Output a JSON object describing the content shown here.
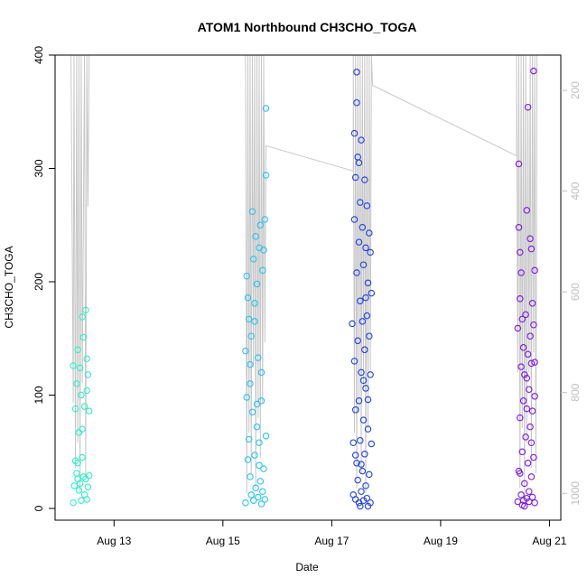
{
  "chart_data": {
    "type": "scatter",
    "title": "ATOM1 Northbound CH3CHO_TOGA",
    "xlabel": "Date",
    "ylabel": "CH3CHO_TOGA",
    "ylim": [
      0,
      400
    ],
    "y_ticks": [
      0,
      100,
      200,
      300,
      400
    ],
    "x_ticks": [
      "Aug 13",
      "Aug 15",
      "Aug 17",
      "Aug 19",
      "Aug 21"
    ],
    "x_range_days": [
      "2016-08-11T22:00",
      "2016-08-21T05:00"
    ],
    "y2_ticks": [
      200,
      400,
      600,
      800,
      1000
    ],
    "y2_range_inverted": [
      130,
      1030
    ],
    "colors": {
      "seg1": "#2cf0c8",
      "seg2": "#25c4f0",
      "seg3": "#1f3fe6",
      "seg4": "#7a18e8",
      "altitude": "#c8c8c8"
    },
    "series": [
      {
        "points": [
          [
            "2016-08-12T06:00",
            5
          ],
          [
            "2016-08-12T06:30",
            20
          ],
          [
            "2016-08-12T07:00",
            42
          ],
          [
            "2016-08-12T07:00",
            88
          ],
          [
            "2016-08-12T07:30",
            31
          ],
          [
            "2016-08-12T07:30",
            110
          ],
          [
            "2016-08-12T08:00",
            26
          ],
          [
            "2016-08-12T08:00",
            140
          ],
          [
            "2016-08-12T08:30",
            16
          ],
          [
            "2016-08-12T08:30",
            67
          ],
          [
            "2016-08-12T09:00",
            22
          ],
          [
            "2016-08-12T09:00",
            124
          ],
          [
            "2016-08-12T09:30",
            7
          ],
          [
            "2016-08-12T09:30",
            100
          ],
          [
            "2016-08-12T10:00",
            45
          ],
          [
            "2016-08-12T10:00",
            169
          ],
          [
            "2016-08-12T10:30",
            28
          ],
          [
            "2016-08-12T10:30",
            151
          ],
          [
            "2016-08-12T11:00",
            12
          ],
          [
            "2016-08-12T11:00",
            90
          ],
          [
            "2016-08-12T11:30",
            175
          ],
          [
            "2016-08-12T11:30",
            26
          ],
          [
            "2016-08-12T12:00",
            104
          ],
          [
            "2016-08-12T12:00",
            132
          ],
          [
            "2016-08-12T12:30",
            19
          ],
          [
            "2016-08-12T12:30",
            118
          ],
          [
            "2016-08-12T13:00",
            29
          ],
          [
            "2016-08-12T13:00",
            86
          ],
          [
            "2016-08-12T08:00",
            40
          ],
          [
            "2016-08-12T10:00",
            70
          ],
          [
            "2016-08-12T06:00",
            126
          ],
          [
            "2016-08-12T12:00",
            8
          ]
        ]
      },
      {
        "points": [
          [
            "2016-08-15T10:00",
            5
          ],
          [
            "2016-08-15T10:00",
            139
          ],
          [
            "2016-08-15T10:30",
            98
          ],
          [
            "2016-08-15T10:30",
            205
          ],
          [
            "2016-08-15T11:00",
            43
          ],
          [
            "2016-08-15T11:00",
            186
          ],
          [
            "2016-08-15T11:30",
            61
          ],
          [
            "2016-08-15T11:30",
            167
          ],
          [
            "2016-08-15T12:00",
            28
          ],
          [
            "2016-08-15T12:00",
            127
          ],
          [
            "2016-08-15T12:30",
            12
          ],
          [
            "2016-08-15T12:30",
            152
          ],
          [
            "2016-08-15T13:00",
            85
          ],
          [
            "2016-08-15T13:00",
            262
          ],
          [
            "2016-08-15T13:30",
            7
          ],
          [
            "2016-08-15T13:30",
            220
          ],
          [
            "2016-08-15T14:00",
            47
          ],
          [
            "2016-08-15T14:00",
            165
          ],
          [
            "2016-08-15T14:30",
            18
          ],
          [
            "2016-08-15T14:30",
            240
          ],
          [
            "2016-08-15T15:00",
            72
          ],
          [
            "2016-08-15T15:00",
            198
          ],
          [
            "2016-08-15T15:30",
            10
          ],
          [
            "2016-08-15T15:30",
            133
          ],
          [
            "2016-08-15T16:00",
            58
          ],
          [
            "2016-08-15T16:00",
            230
          ],
          [
            "2016-08-15T16:30",
            24
          ],
          [
            "2016-08-15T16:30",
            250
          ],
          [
            "2016-08-15T17:00",
            95
          ],
          [
            "2016-08-15T17:00",
            120
          ],
          [
            "2016-08-15T17:30",
            15
          ],
          [
            "2016-08-15T17:30",
            210
          ],
          [
            "2016-08-15T18:00",
            35
          ],
          [
            "2016-08-15T18:00",
            228
          ],
          [
            "2016-08-15T18:30",
            8
          ],
          [
            "2016-08-15T18:30",
            255
          ],
          [
            "2016-08-15T19:00",
            64
          ],
          [
            "2016-08-15T19:00",
            294
          ],
          [
            "2016-08-15T19:00",
            353
          ],
          [
            "2016-08-15T17:00",
            4
          ],
          [
            "2016-08-15T12:00",
            110
          ],
          [
            "2016-08-15T15:00",
            92
          ],
          [
            "2016-08-15T16:00",
            38
          ],
          [
            "2016-08-15T14:00",
            181
          ]
        ]
      },
      {
        "points": [
          [
            "2016-08-17T09:00",
            163
          ],
          [
            "2016-08-17T09:30",
            12
          ],
          [
            "2016-08-17T09:30",
            58
          ],
          [
            "2016-08-17T10:00",
            130
          ],
          [
            "2016-08-17T10:00",
            255
          ],
          [
            "2016-08-17T10:00",
            331
          ],
          [
            "2016-08-17T10:30",
            8
          ],
          [
            "2016-08-17T10:30",
            87
          ],
          [
            "2016-08-17T10:30",
            292
          ],
          [
            "2016-08-17T11:00",
            385
          ],
          [
            "2016-08-17T11:00",
            40
          ],
          [
            "2016-08-17T11:00",
            208
          ],
          [
            "2016-08-17T11:30",
            25
          ],
          [
            "2016-08-17T11:30",
            148
          ],
          [
            "2016-08-17T11:30",
            310
          ],
          [
            "2016-08-17T12:00",
            5
          ],
          [
            "2016-08-17T12:00",
            95
          ],
          [
            "2016-08-17T12:00",
            235
          ],
          [
            "2016-08-17T12:30",
            60
          ],
          [
            "2016-08-17T12:30",
            183
          ],
          [
            "2016-08-17T12:30",
            270
          ],
          [
            "2016-08-17T13:00",
            15
          ],
          [
            "2016-08-17T13:00",
            120
          ],
          [
            "2016-08-17T13:00",
            325
          ],
          [
            "2016-08-17T13:30",
            33
          ],
          [
            "2016-08-17T13:30",
            165
          ],
          [
            "2016-08-17T13:30",
            248
          ],
          [
            "2016-08-17T14:00",
            7
          ],
          [
            "2016-08-17T14:00",
            78
          ],
          [
            "2016-08-17T14:00",
            215
          ],
          [
            "2016-08-17T14:30",
            48
          ],
          [
            "2016-08-17T14:30",
            140
          ],
          [
            "2016-08-17T14:30",
            290
          ],
          [
            "2016-08-17T15:00",
            20
          ],
          [
            "2016-08-17T15:00",
            106
          ],
          [
            "2016-08-17T15:00",
            230
          ],
          [
            "2016-08-17T15:30",
            9
          ],
          [
            "2016-08-17T15:30",
            170
          ],
          [
            "2016-08-17T15:30",
            267
          ],
          [
            "2016-08-17T16:00",
            70
          ],
          [
            "2016-08-17T16:00",
            199
          ],
          [
            "2016-08-17T16:30",
            30
          ],
          [
            "2016-08-17T16:30",
            152
          ],
          [
            "2016-08-17T16:30",
            243
          ],
          [
            "2016-08-17T17:00",
            5
          ],
          [
            "2016-08-17T17:00",
            118
          ],
          [
            "2016-08-17T17:00",
            226
          ],
          [
            "2016-08-17T17:30",
            57
          ],
          [
            "2016-08-17T17:30",
            190
          ],
          [
            "2016-08-17T11:00",
            358
          ],
          [
            "2016-08-17T12:00",
            305
          ],
          [
            "2016-08-17T14:00",
            113
          ],
          [
            "2016-08-17T15:00",
            186
          ],
          [
            "2016-08-17T16:00",
            96
          ],
          [
            "2016-08-17T13:00",
            39
          ],
          [
            "2016-08-17T10:30",
            47
          ],
          [
            "2016-08-17T12:30",
            2
          ],
          [
            "2016-08-17T16:00",
            2
          ]
        ]
      },
      {
        "points": [
          [
            "2016-08-20T10:00",
            6
          ],
          [
            "2016-08-20T10:00",
            159
          ],
          [
            "2016-08-20T10:30",
            33
          ],
          [
            "2016-08-20T10:30",
            248
          ],
          [
            "2016-08-20T10:30",
            304
          ],
          [
            "2016-08-20T11:00",
            80
          ],
          [
            "2016-08-20T11:00",
            185
          ],
          [
            "2016-08-20T11:00",
            226
          ],
          [
            "2016-08-20T11:30",
            12
          ],
          [
            "2016-08-20T11:30",
            125
          ],
          [
            "2016-08-20T11:30",
            208
          ],
          [
            "2016-08-20T12:00",
            50
          ],
          [
            "2016-08-20T12:00",
            167
          ],
          [
            "2016-08-20T12:30",
            7
          ],
          [
            "2016-08-20T12:30",
            95
          ],
          [
            "2016-08-20T12:30",
            142
          ],
          [
            "2016-08-20T13:00",
            22
          ],
          [
            "2016-08-20T13:00",
            118
          ],
          [
            "2016-08-20T13:30",
            63
          ],
          [
            "2016-08-20T13:30",
            171
          ],
          [
            "2016-08-20T14:00",
            9
          ],
          [
            "2016-08-20T14:00",
            88
          ],
          [
            "2016-08-20T14:00",
            263
          ],
          [
            "2016-08-20T14:30",
            40
          ],
          [
            "2016-08-20T14:30",
            136
          ],
          [
            "2016-08-20T14:30",
            354
          ],
          [
            "2016-08-20T15:00",
            15
          ],
          [
            "2016-08-20T15:00",
            105
          ],
          [
            "2016-08-20T15:30",
            72
          ],
          [
            "2016-08-20T15:30",
            152
          ],
          [
            "2016-08-20T16:00",
            28
          ],
          [
            "2016-08-20T16:00",
            128
          ],
          [
            "2016-08-20T16:00",
            229
          ],
          [
            "2016-08-20T16:30",
            10
          ],
          [
            "2016-08-20T16:30",
            86
          ],
          [
            "2016-08-20T16:30",
            181
          ],
          [
            "2016-08-20T17:00",
            45
          ],
          [
            "2016-08-20T17:00",
            162
          ],
          [
            "2016-08-20T17:00",
            386
          ],
          [
            "2016-08-20T17:30",
            5
          ],
          [
            "2016-08-20T17:30",
            99
          ],
          [
            "2016-08-20T17:30",
            210
          ],
          [
            "2016-08-20T12:00",
            3
          ],
          [
            "2016-08-20T13:00",
            2
          ],
          [
            "2016-08-20T15:00",
            6
          ],
          [
            "2016-08-20T16:00",
            58
          ],
          [
            "2016-08-20T11:00",
            31
          ],
          [
            "2016-08-20T14:00",
            115
          ],
          [
            "2016-08-20T15:30",
            238
          ],
          [
            "2016-08-20T17:30",
            129
          ]
        ]
      }
    ],
    "altitude_trace": {
      "segments": [
        [
          [
            "2016-08-12T05:00",
            130
          ],
          [
            "2016-08-12T06:00",
            820
          ],
          [
            "2016-08-12T06:20",
            130
          ],
          [
            "2016-08-12T07:00",
            950
          ],
          [
            "2016-08-12T07:30",
            130
          ],
          [
            "2016-08-12T08:00",
            900
          ],
          [
            "2016-08-12T08:30",
            130
          ],
          [
            "2016-08-12T09:00",
            1000
          ],
          [
            "2016-08-12T09:30",
            130
          ],
          [
            "2016-08-12T10:00",
            780
          ],
          [
            "2016-08-12T11:00",
            130
          ],
          [
            "2016-08-12T11:30",
            970
          ],
          [
            "2016-08-12T12:00",
            130
          ],
          [
            "2016-08-12T12:30",
            430
          ],
          [
            "2016-08-12T13:00",
            130
          ]
        ],
        [
          [
            "2016-08-15T10:00",
            130
          ],
          [
            "2016-08-15T10:30",
            1000
          ],
          [
            "2016-08-15T11:00",
            130
          ],
          [
            "2016-08-15T11:30",
            880
          ],
          [
            "2016-08-15T12:00",
            130
          ],
          [
            "2016-08-15T12:30",
            960
          ],
          [
            "2016-08-15T13:00",
            130
          ],
          [
            "2016-08-15T13:30",
            750
          ],
          [
            "2016-08-15T14:00",
            130
          ],
          [
            "2016-08-15T14:30",
            990
          ],
          [
            "2016-08-15T15:00",
            130
          ],
          [
            "2016-08-15T15:30",
            850
          ],
          [
            "2016-08-15T16:00",
            130
          ],
          [
            "2016-08-15T16:30",
            930
          ],
          [
            "2016-08-15T17:00",
            130
          ],
          [
            "2016-08-15T17:30",
            820
          ],
          [
            "2016-08-15T18:00",
            130
          ],
          [
            "2016-08-15T18:30",
            700
          ],
          [
            "2016-08-15T19:00",
            310
          ],
          [
            "2016-08-17T09:30",
            360
          ],
          [
            "2016-08-17T09:30",
            130
          ],
          [
            "2016-08-17T10:00",
            880
          ],
          [
            "2016-08-17T10:30",
            130
          ],
          [
            "2016-08-17T11:00",
            990
          ],
          [
            "2016-08-17T11:30",
            130
          ],
          [
            "2016-08-17T12:00",
            840
          ],
          [
            "2016-08-17T12:30",
            130
          ],
          [
            "2016-08-17T13:00",
            960
          ],
          [
            "2016-08-17T13:30",
            130
          ],
          [
            "2016-08-17T14:00",
            790
          ],
          [
            "2016-08-17T14:30",
            130
          ],
          [
            "2016-08-17T15:00",
            1000
          ],
          [
            "2016-08-17T15:30",
            130
          ],
          [
            "2016-08-17T16:00",
            870
          ],
          [
            "2016-08-17T16:30",
            130
          ],
          [
            "2016-08-17T17:00",
            760
          ],
          [
            "2016-08-17T17:30",
            130
          ],
          [
            "2016-08-17T18:00",
            190
          ],
          [
            "2016-08-20T09:30",
            330
          ],
          [
            "2016-08-20T09:30",
            130
          ],
          [
            "2016-08-20T10:00",
            760
          ],
          [
            "2016-08-20T10:30",
            130
          ],
          [
            "2016-08-20T11:00",
            990
          ],
          [
            "2016-08-20T11:30",
            130
          ],
          [
            "2016-08-20T12:00",
            870
          ],
          [
            "2016-08-20T12:30",
            130
          ],
          [
            "2016-08-20T13:00",
            1000
          ],
          [
            "2016-08-20T13:30",
            130
          ],
          [
            "2016-08-20T14:00",
            900
          ],
          [
            "2016-08-20T14:30",
            230
          ],
          [
            "2016-08-20T15:00",
            760
          ],
          [
            "2016-08-20T15:30",
            130
          ],
          [
            "2016-08-20T16:00",
            950
          ],
          [
            "2016-08-20T16:30",
            130
          ],
          [
            "2016-08-20T17:00",
            720
          ],
          [
            "2016-08-20T17:30",
            130
          ],
          [
            "2016-08-20T18:00",
            960
          ],
          [
            "2016-08-20T18:30",
            130
          ]
        ]
      ]
    }
  }
}
